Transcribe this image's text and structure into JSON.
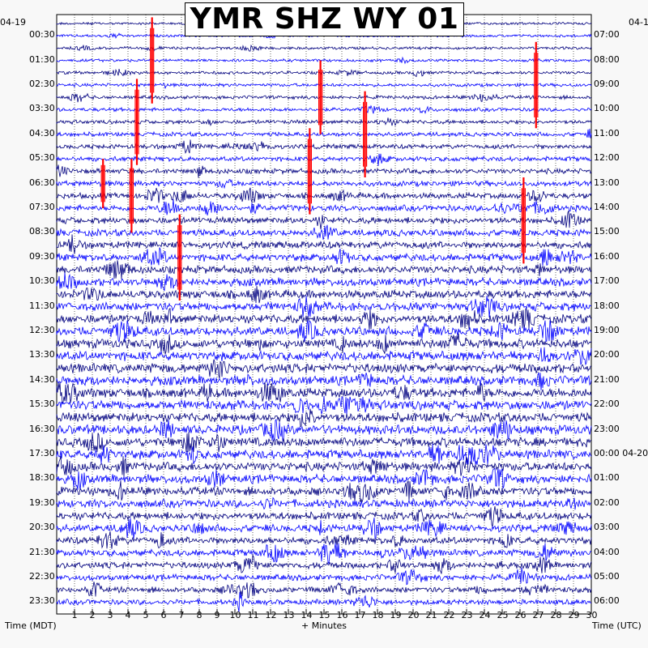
{
  "title": "YMR SHZ WY 01",
  "left_date": "04-19",
  "right_date": "04-1",
  "left_axis_label": "Time (MDT)",
  "right_axis_label": "Time (UTC)",
  "bottom_axis_label": "+ Minutes",
  "colors": {
    "trace_dark": "#00007f",
    "trace_light": "#0000ff",
    "event_marker": "#ff0000",
    "grid": "#000000"
  },
  "chart_data": {
    "type": "helicorder",
    "title": "YMR SHZ WY 01",
    "xlabel": "+ Minutes",
    "xlim": [
      0,
      30
    ],
    "x_ticks": [
      "1",
      "2",
      "3",
      "4",
      "5",
      "6",
      "7",
      "8",
      "9",
      "10",
      "11",
      "12",
      "13",
      "14",
      "15",
      "16",
      "17",
      "18",
      "19",
      "20",
      "21",
      "22",
      "23",
      "24",
      "25",
      "26",
      "27",
      "28",
      "29",
      "30"
    ],
    "left_ticks_mdt": [
      "00:30",
      "01:30",
      "02:30",
      "03:30",
      "04:30",
      "05:30",
      "06:30",
      "07:30",
      "08:30",
      "09:30",
      "10:30",
      "11:30",
      "12:30",
      "13:30",
      "14:30",
      "15:30",
      "16:30",
      "17:30",
      "18:30",
      "19:30",
      "20:30",
      "21:30",
      "22:30",
      "23:30"
    ],
    "right_ticks_utc": [
      "07:00",
      "08:00",
      "09:00",
      "10:00",
      "11:00",
      "12:00",
      "13:00",
      "14:00",
      "15:00",
      "16:00",
      "17:00",
      "18:00",
      "19:00",
      "20:00",
      "21:00",
      "22:00",
      "23:00",
      "00:00 04-20",
      "01:00",
      "02:00",
      "03:00",
      "04:00",
      "05:00",
      "06:00"
    ],
    "rows_per_hour": 2,
    "line_minutes": 30,
    "events": [
      {
        "row": 3,
        "minute": 5.35,
        "span_rows": 3.5
      },
      {
        "row": 5,
        "minute": 26.9,
        "span_rows": 3.5
      },
      {
        "row": 6,
        "minute": 14.8,
        "span_rows": 3.0
      },
      {
        "row": 8,
        "minute": 4.5,
        "span_rows": 3.5
      },
      {
        "row": 9,
        "minute": 17.3,
        "span_rows": 3.5
      },
      {
        "row": 12,
        "minute": 14.2,
        "span_rows": 3.5
      },
      {
        "row": 13,
        "minute": 2.6,
        "span_rows": 2.0
      },
      {
        "row": 14,
        "minute": 4.2,
        "span_rows": 3.0
      },
      {
        "row": 16,
        "minute": 26.2,
        "span_rows": 3.5
      },
      {
        "row": 19,
        "minute": 6.9,
        "span_rows": 3.5
      }
    ]
  }
}
